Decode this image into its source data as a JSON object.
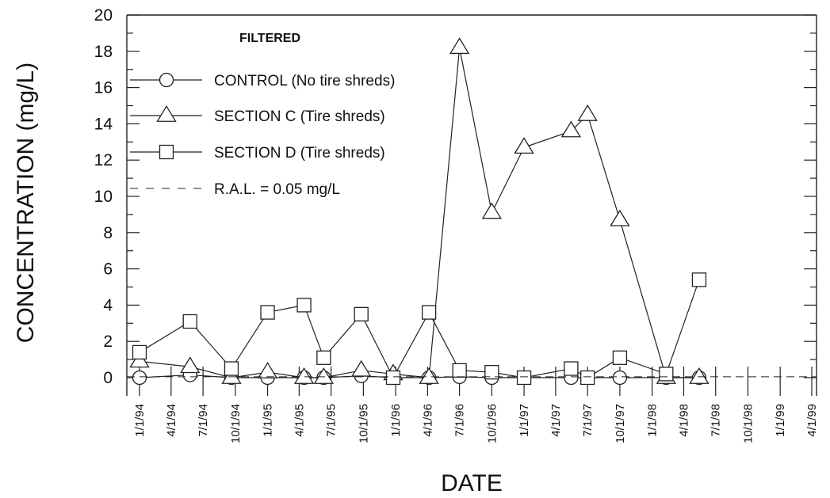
{
  "chart_data": {
    "type": "line",
    "title": "FILTERED",
    "xlabel": "DATE",
    "ylabel": "CONCENTRATION (mg/L)",
    "ylim": [
      0,
      20
    ],
    "yticks": [
      "0",
      "2",
      "4",
      "6",
      "8",
      "10",
      "12",
      "14",
      "16",
      "18",
      "20"
    ],
    "xticks": [
      "1/1/94",
      "4/1/94",
      "7/1/94",
      "10/1/94",
      "1/1/95",
      "4/1/95",
      "7/1/95",
      "10/1/95",
      "1/1/96",
      "4/1/96",
      "7/1/96",
      "10/1/96",
      "1/1/97",
      "4/1/97",
      "7/1/97",
      "10/1/97",
      "1/1/98",
      "4/1/98",
      "7/1/98",
      "10/1/98",
      "1/1/99",
      "4/1/99"
    ],
    "legend_position": "top-left",
    "grid": false,
    "series": [
      {
        "name": "CONTROL (No tire shreds)",
        "marker": "circle",
        "points": [
          [
            "1/1/94",
            0.0
          ],
          [
            "5/25/94",
            0.15
          ],
          [
            "9/20/94",
            0.0
          ],
          [
            "1/1/95",
            0.0
          ],
          [
            "4/15/95",
            0.0
          ],
          [
            "6/10/95",
            0.0
          ],
          [
            "9/25/95",
            0.1
          ],
          [
            "12/25/95",
            0.0
          ],
          [
            "4/5/96",
            0.0
          ],
          [
            "7/1/96",
            0.05
          ],
          [
            "10/1/96",
            0.0
          ],
          [
            "1/1/97",
            0.0
          ],
          [
            "5/15/97",
            0.0
          ],
          [
            "7/1/97",
            0.0
          ],
          [
            "10/1/97",
            0.0
          ],
          [
            "2/10/98",
            0.0
          ],
          [
            "5/15/98",
            0.0
          ]
        ]
      },
      {
        "name": "SECTION C (Tire shreds)",
        "marker": "triangle",
        "points": [
          [
            "1/1/94",
            0.9
          ],
          [
            "5/25/94",
            0.6
          ],
          [
            "9/20/94",
            0.0
          ],
          [
            "1/1/95",
            0.3
          ],
          [
            "4/15/95",
            0.0
          ],
          [
            "6/10/95",
            0.0
          ],
          [
            "9/25/95",
            0.4
          ],
          [
            "12/25/95",
            0.2
          ],
          [
            "4/5/96",
            0.0
          ],
          [
            "7/1/96",
            18.2
          ],
          [
            "10/1/96",
            9.1
          ],
          [
            "1/1/97",
            12.7
          ],
          [
            "5/15/97",
            13.6
          ],
          [
            "7/1/97",
            14.5
          ],
          [
            "10/1/97",
            8.7
          ],
          [
            "2/10/98",
            0.0
          ],
          [
            "5/15/98",
            0.0
          ]
        ]
      },
      {
        "name": "SECTION D (Tire shreds)",
        "marker": "square",
        "points": [
          [
            "1/1/94",
            1.4
          ],
          [
            "5/25/94",
            3.1
          ],
          [
            "9/20/94",
            0.5
          ],
          [
            "1/1/95",
            3.6
          ],
          [
            "4/15/95",
            4.0
          ],
          [
            "6/10/95",
            1.1
          ],
          [
            "9/25/95",
            3.5
          ],
          [
            "12/25/95",
            0.0
          ],
          [
            "4/5/96",
            3.6
          ],
          [
            "7/1/96",
            0.4
          ],
          [
            "10/1/96",
            0.3
          ],
          [
            "1/1/97",
            0.0
          ],
          [
            "5/15/97",
            0.5
          ],
          [
            "7/1/97",
            0.0
          ],
          [
            "10/1/97",
            1.1
          ],
          [
            "2/10/98",
            0.2
          ],
          [
            "5/15/98",
            5.4
          ]
        ]
      },
      {
        "name": "R.A.L. = 0.05 mg/L",
        "marker": "none",
        "style": "dashed",
        "value": 0.05
      }
    ]
  }
}
